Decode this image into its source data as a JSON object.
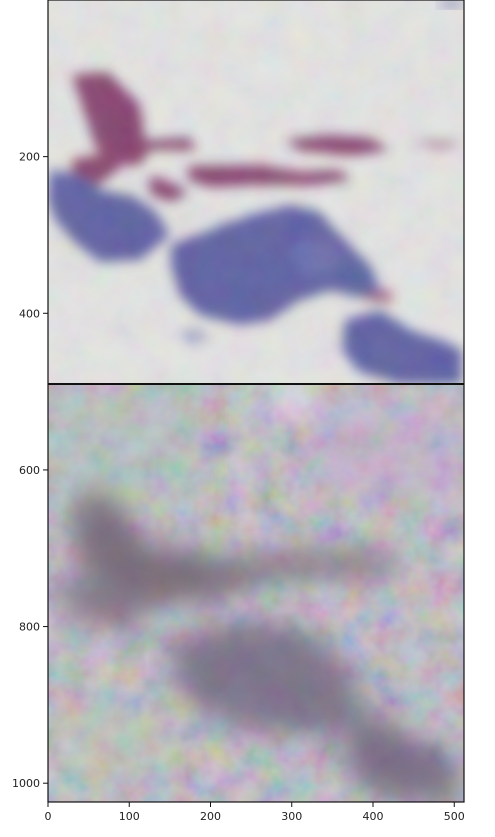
{
  "chart_data": {
    "type": "image",
    "title": "",
    "xlabel": "",
    "ylabel": "",
    "xlim": [
      0,
      512
    ],
    "ylim": [
      1024,
      0
    ],
    "x_ticks": [
      0,
      100,
      200,
      300,
      400,
      500
    ],
    "y_ticks": [
      200,
      400,
      600,
      800,
      1000
    ],
    "x_tick_labels": [
      "0",
      "100",
      "200",
      "300",
      "400",
      "500"
    ],
    "y_tick_labels": [
      "200",
      "400",
      "600",
      "800",
      "1000"
    ],
    "panels": [
      {
        "description_key": "top",
        "y_range": [
          0,
          512
        ]
      },
      {
        "description_key": "bottom",
        "y_range": [
          512,
          1024
        ]
      }
    ],
    "separator_y": 512
  }
}
